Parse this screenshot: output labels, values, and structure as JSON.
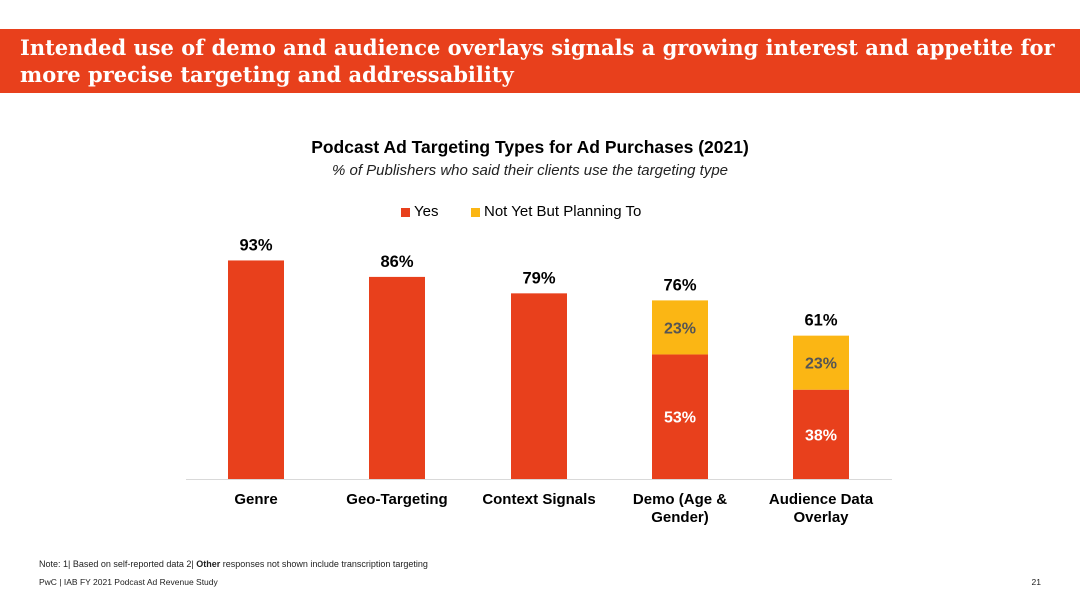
{
  "headline": "Intended use of demo and audience overlays signals a growing interest and appetite for more precise targeting and addressability",
  "colors": {
    "banner": "#e8401c",
    "yes": "#e8401c",
    "planning": "#fbb614",
    "axis": "#d9d9d9"
  },
  "chart_data": {
    "type": "bar",
    "stacked": true,
    "title": "Podcast Ad Targeting Types for Ad Purchases (2021)",
    "subtitle": "% of Publishers who said their clients use the targeting type",
    "categories": [
      "Genre",
      "Geo-Targeting",
      "Context Signals",
      "Demo (Age & Gender)",
      "Audience Data Overlay"
    ],
    "category_lines": [
      [
        "Genre"
      ],
      [
        "Geo-Targeting"
      ],
      [
        "Context Signals"
      ],
      [
        "Demo (Age &",
        "Gender)"
      ],
      [
        "Audience Data",
        "Overlay"
      ]
    ],
    "series": [
      {
        "name": "Yes",
        "color": "#e8401c",
        "values": [
          93,
          86,
          79,
          53,
          38
        ],
        "labels": [
          "",
          "",
          "",
          "53%",
          "38%"
        ]
      },
      {
        "name": "Not Yet But Planning To",
        "color": "#fbb614",
        "values": [
          0,
          0,
          0,
          23,
          23
        ],
        "labels": [
          "",
          "",
          "",
          "23%",
          "23%"
        ]
      }
    ],
    "totals": [
      "93%",
      "86%",
      "79%",
      "76%",
      "61%"
    ],
    "ylim": [
      0,
      100
    ],
    "grid": false,
    "legend_position": "top"
  },
  "note": {
    "prefix": "Note: 1| Based on self-reported data  2| ",
    "bold": "Other",
    "suffix": " responses not shown include transcription targeting"
  },
  "footer": {
    "source": "PwC  |  IAB FY 2021 Podcast Ad Revenue Study",
    "page": "21"
  }
}
